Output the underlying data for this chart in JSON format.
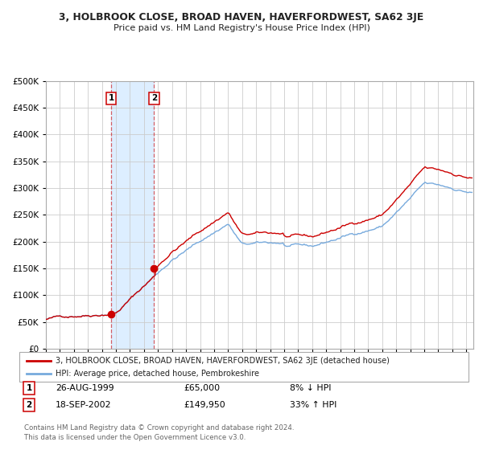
{
  "title": "3, HOLBROOK CLOSE, BROAD HAVEN, HAVERFORDWEST, SA62 3JE",
  "subtitle": "Price paid vs. HM Land Registry's House Price Index (HPI)",
  "legend_line1": "3, HOLBROOK CLOSE, BROAD HAVEN, HAVERFORDWEST, SA62 3JE (detached house)",
  "legend_line2": "HPI: Average price, detached house, Pembrokeshire",
  "transaction1_date": "26-AUG-1999",
  "transaction1_price": 65000,
  "transaction1_hpi": "8% ↓ HPI",
  "transaction2_date": "18-SEP-2002",
  "transaction2_price": 149950,
  "transaction2_hpi": "33% ↑ HPI",
  "footnote1": "Contains HM Land Registry data © Crown copyright and database right 2024.",
  "footnote2": "This data is licensed under the Open Government Licence v3.0.",
  "red_color": "#cc0000",
  "blue_color": "#77aadd",
  "shading_color": "#ddeeff",
  "background_color": "#ffffff",
  "grid_color": "#cccccc",
  "ylim_max": 500000,
  "ylim_min": 0,
  "xstart": 1995.0,
  "xend": 2025.5,
  "transaction1_x": 1999.65,
  "transaction2_x": 2002.72
}
